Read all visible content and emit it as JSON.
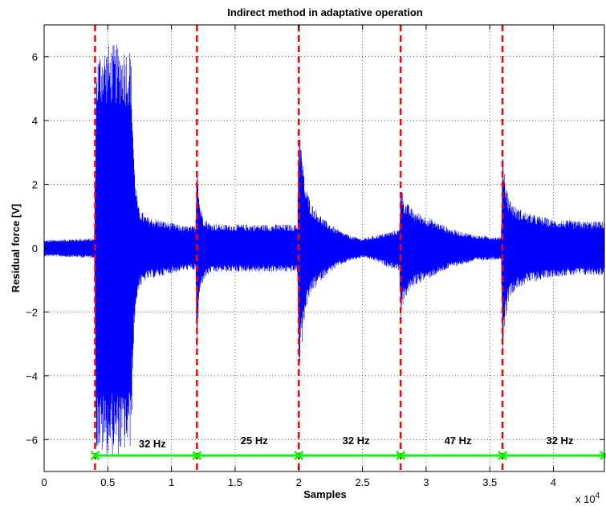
{
  "chart_data": {
    "type": "line",
    "title": "Indirect method in adaptative operation",
    "xlabel": "Samples",
    "ylabel": "Residual force [V]",
    "x_multiplier_label": "x 10",
    "x_multiplier_exponent": "4",
    "xlim": [
      0,
      4.4
    ],
    "ylim": [
      -7,
      7
    ],
    "x_ticks": [
      0,
      0.5,
      1,
      1.5,
      2,
      2.5,
      3,
      3.5,
      4
    ],
    "x_tick_labels": [
      "0",
      "0.5",
      "1",
      "1.5",
      "2",
      "2.5",
      "3",
      "3.5",
      "4"
    ],
    "y_ticks": [
      -6,
      -4,
      -2,
      0,
      2,
      4,
      6
    ],
    "y_tick_labels": [
      "−6",
      "−4",
      "−2",
      "0",
      "2",
      "4",
      "6"
    ],
    "grid": true,
    "colors": {
      "signal": "#0000ff",
      "switch": "#ff0000",
      "frequency": "#00ff00"
    },
    "frequency_switch_x": [
      0.4,
      1.2,
      2.0,
      2.8,
      3.6
    ],
    "frequency_line": {
      "y": -6.5,
      "marker_x": [
        0.4,
        1.2,
        2.0,
        2.8,
        3.6,
        4.4
      ]
    },
    "segment_labels": [
      {
        "x": 0.85,
        "y": -6.25,
        "text": "32 Hz"
      },
      {
        "x": 1.65,
        "y": -6.15,
        "text": "25 Hz"
      },
      {
        "x": 2.45,
        "y": -6.15,
        "text": "32 Hz"
      },
      {
        "x": 3.25,
        "y": -6.15,
        "text": "47 Hz"
      },
      {
        "x": 4.05,
        "y": -6.15,
        "text": "32 Hz"
      }
    ],
    "envelope": {
      "x": [
        0,
        0.3,
        0.395,
        0.41,
        0.45,
        0.5,
        0.6,
        0.68,
        0.71,
        0.74,
        0.8,
        0.9,
        1.0,
        1.1,
        1.19,
        1.2,
        1.22,
        1.25,
        1.3,
        1.4,
        1.5,
        1.7,
        1.9,
        1.99,
        2.0,
        2.02,
        2.05,
        2.1,
        2.2,
        2.3,
        2.4,
        2.5,
        2.6,
        2.7,
        2.79,
        2.8,
        2.83,
        2.9,
        3.0,
        3.2,
        3.4,
        3.59,
        3.6,
        3.62,
        3.65,
        3.7,
        3.8,
        4.0,
        4.2,
        4.4
      ],
      "upper": [
        0.25,
        0.3,
        0.3,
        6.0,
        6.4,
        6.4,
        6.4,
        6.3,
        2.5,
        1.3,
        1.0,
        0.9,
        0.8,
        0.7,
        0.7,
        3.1,
        1.5,
        1.0,
        0.8,
        0.75,
        0.75,
        0.75,
        0.75,
        0.75,
        4.1,
        3.2,
        2.0,
        1.4,
        0.9,
        0.6,
        0.4,
        0.3,
        0.4,
        0.5,
        0.6,
        2.1,
        1.5,
        1.2,
        1.0,
        0.6,
        0.4,
        0.35,
        3.35,
        2.2,
        1.6,
        1.3,
        1.1,
        0.9,
        0.85,
        0.85
      ],
      "lower": [
        -0.25,
        -0.3,
        -0.3,
        -6.3,
        -6.5,
        -6.5,
        -6.5,
        -6.3,
        -2.3,
        -1.3,
        -1.0,
        -0.9,
        -0.8,
        -0.7,
        -0.7,
        -3.3,
        -1.5,
        -1.0,
        -0.8,
        -0.75,
        -0.75,
        -0.75,
        -0.75,
        -0.75,
        -4.0,
        -3.2,
        -2.0,
        -1.4,
        -0.9,
        -0.6,
        -0.4,
        -0.3,
        -0.4,
        -0.6,
        -0.7,
        -2.2,
        -1.6,
        -1.2,
        -1.0,
        -0.6,
        -0.4,
        -0.35,
        -3.5,
        -2.3,
        -1.6,
        -1.3,
        -1.1,
        -0.9,
        -0.85,
        -0.85
      ]
    }
  }
}
